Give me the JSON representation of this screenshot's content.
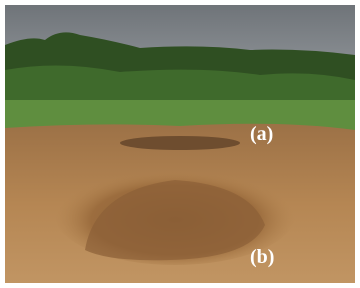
{
  "annotations": [
    "(a)",
    "(b)"
  ]
}
